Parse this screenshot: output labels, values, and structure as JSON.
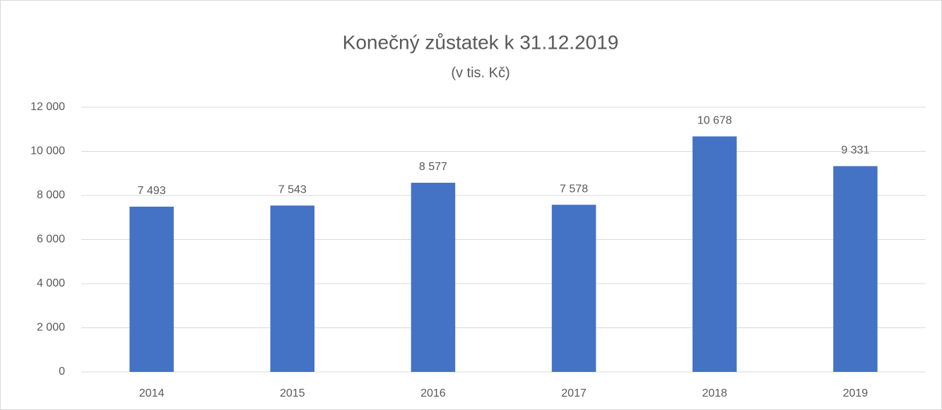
{
  "chart_data": {
    "type": "bar",
    "title": "Konečný zůstatek k 31.12.2019",
    "subtitle": "(v tis. Kč)",
    "categories": [
      "2014",
      "2015",
      "2016",
      "2017",
      "2018",
      "2019"
    ],
    "values": [
      7493,
      7543,
      8577,
      7578,
      10678,
      9331
    ],
    "value_labels": [
      "7 493",
      "7 543",
      "8 577",
      "7 578",
      "10 678",
      "9 331"
    ],
    "color": "#4472c4",
    "ylim": [
      0,
      12000
    ],
    "yticks": [
      0,
      {
        "value": 2000,
        "label": "2 000"
      },
      {
        "value": 4000,
        "label": "4 000"
      },
      {
        "value": 6000,
        "label": "6 000"
      },
      {
        "value": 8000,
        "label": "8 000"
      },
      {
        "value": 10000,
        "label": "10 000"
      },
      {
        "value": 12000,
        "label": "12 000"
      }
    ],
    "grid": true
  }
}
